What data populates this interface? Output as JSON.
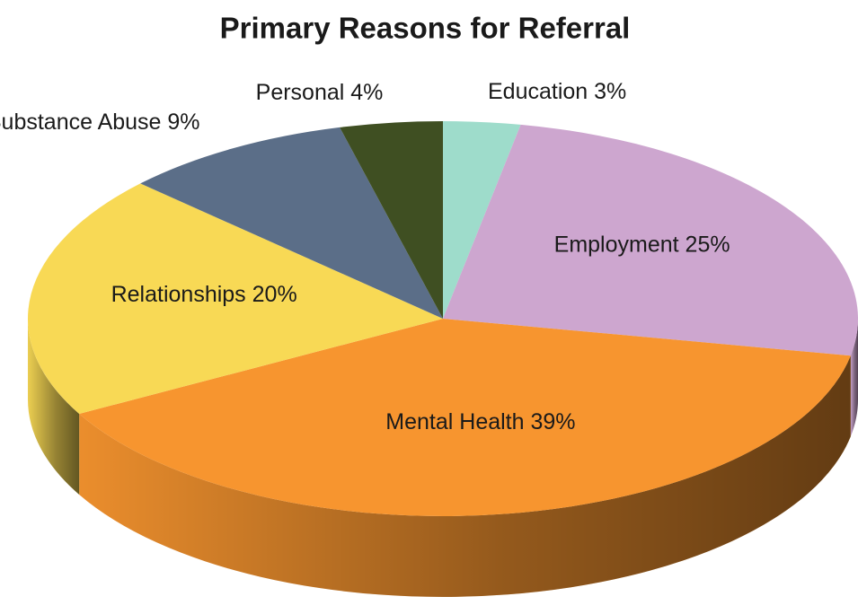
{
  "chart_data": {
    "type": "pie3d",
    "title": "Primary Reasons for Referral",
    "categories": [
      "Education",
      "Employment",
      "Mental Health",
      "Relationships",
      "Substance Abuse",
      "Personal"
    ],
    "values": [
      3,
      25,
      39,
      20,
      9,
      4
    ],
    "value_labels": [
      "3%",
      "25%",
      "39%",
      "20%",
      "9%",
      "4%"
    ],
    "colors": [
      "#9edccb",
      "#cda6cf",
      "#f7952f",
      "#f8d955",
      "#5b6e88",
      "#3f4f22"
    ]
  }
}
